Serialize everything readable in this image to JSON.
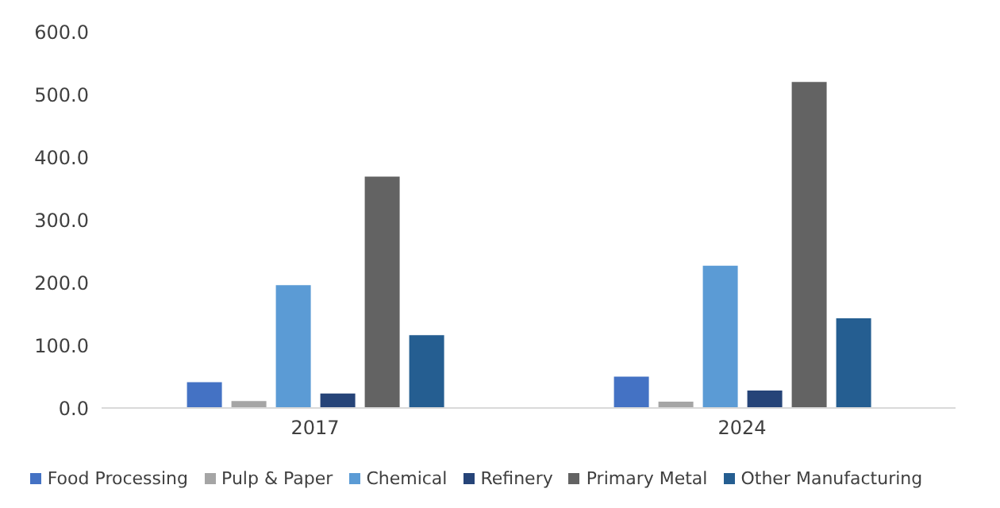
{
  "chart_data": {
    "type": "bar",
    "categories": [
      "2017",
      "2024"
    ],
    "series": [
      {
        "name": "Food Processing",
        "color": "#4472c4",
        "values": [
          41,
          50
        ]
      },
      {
        "name": "Pulp & Paper",
        "color": "#a5a5a5",
        "values": [
          11,
          10
        ]
      },
      {
        "name": "Chemical",
        "color": "#5b9bd5",
        "values": [
          196,
          227
        ]
      },
      {
        "name": "Refinery",
        "color": "#264478",
        "values": [
          23,
          28
        ]
      },
      {
        "name": "Primary Metal",
        "color": "#636363",
        "values": [
          369,
          520
        ]
      },
      {
        "name": "Other Manufacturing",
        "color": "#255e91",
        "values": [
          116,
          143
        ]
      }
    ],
    "ylim": [
      0,
      600
    ],
    "yticks": [
      {
        "value": 0,
        "label": "0.0"
      },
      {
        "value": 100,
        "label": "100.0"
      },
      {
        "value": 200,
        "label": "200.0"
      },
      {
        "value": 300,
        "label": "300.0"
      },
      {
        "value": 400,
        "label": "400.0"
      },
      {
        "value": 500,
        "label": "500.0"
      },
      {
        "value": 600,
        "label": "600.0"
      }
    ],
    "legend": "bottom"
  }
}
